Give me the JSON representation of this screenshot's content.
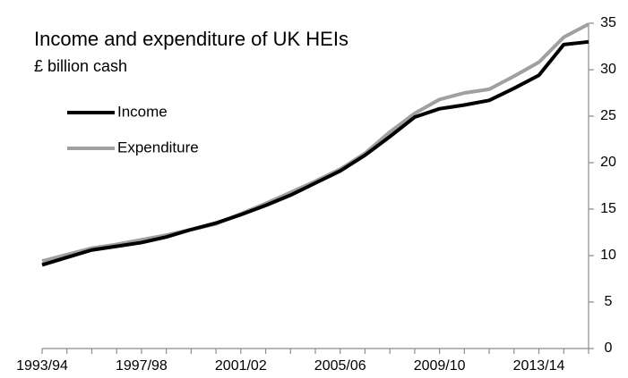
{
  "chart_data": {
    "type": "line",
    "title": "Income and expenditure of UK HEIs",
    "subtitle": "£ billion cash",
    "categories": [
      "1993/94",
      null,
      null,
      null,
      "1997/98",
      null,
      null,
      null,
      "2001/02",
      null,
      null,
      null,
      "2005/06",
      null,
      null,
      null,
      "2009/10",
      null,
      null,
      null,
      "2013/14",
      null,
      null
    ],
    "series": [
      {
        "name": "Income",
        "color": "#000000",
        "values": [
          9.0,
          9.8,
          10.6,
          11.0,
          11.4,
          12.0,
          12.8,
          13.5,
          14.4,
          15.4,
          16.5,
          17.8,
          19.1,
          20.8,
          22.8,
          24.9,
          25.8,
          26.2,
          26.7,
          28.0,
          29.4,
          32.7,
          33.0
        ]
      },
      {
        "name": "Expenditure",
        "color": "#a0a0a0",
        "values": [
          9.4,
          10.1,
          10.8,
          11.2,
          11.7,
          12.2,
          12.8,
          13.4,
          14.5,
          15.6,
          16.8,
          18.0,
          19.3,
          21.0,
          23.3,
          25.3,
          26.8,
          27.5,
          27.9,
          29.3,
          30.8,
          33.5,
          34.9
        ]
      }
    ],
    "ylim": [
      0,
      35
    ],
    "yticks": [
      0,
      5,
      10,
      15,
      20,
      25,
      30,
      35
    ],
    "y_axis_side": "right",
    "legend": "upper left",
    "grid": false
  }
}
